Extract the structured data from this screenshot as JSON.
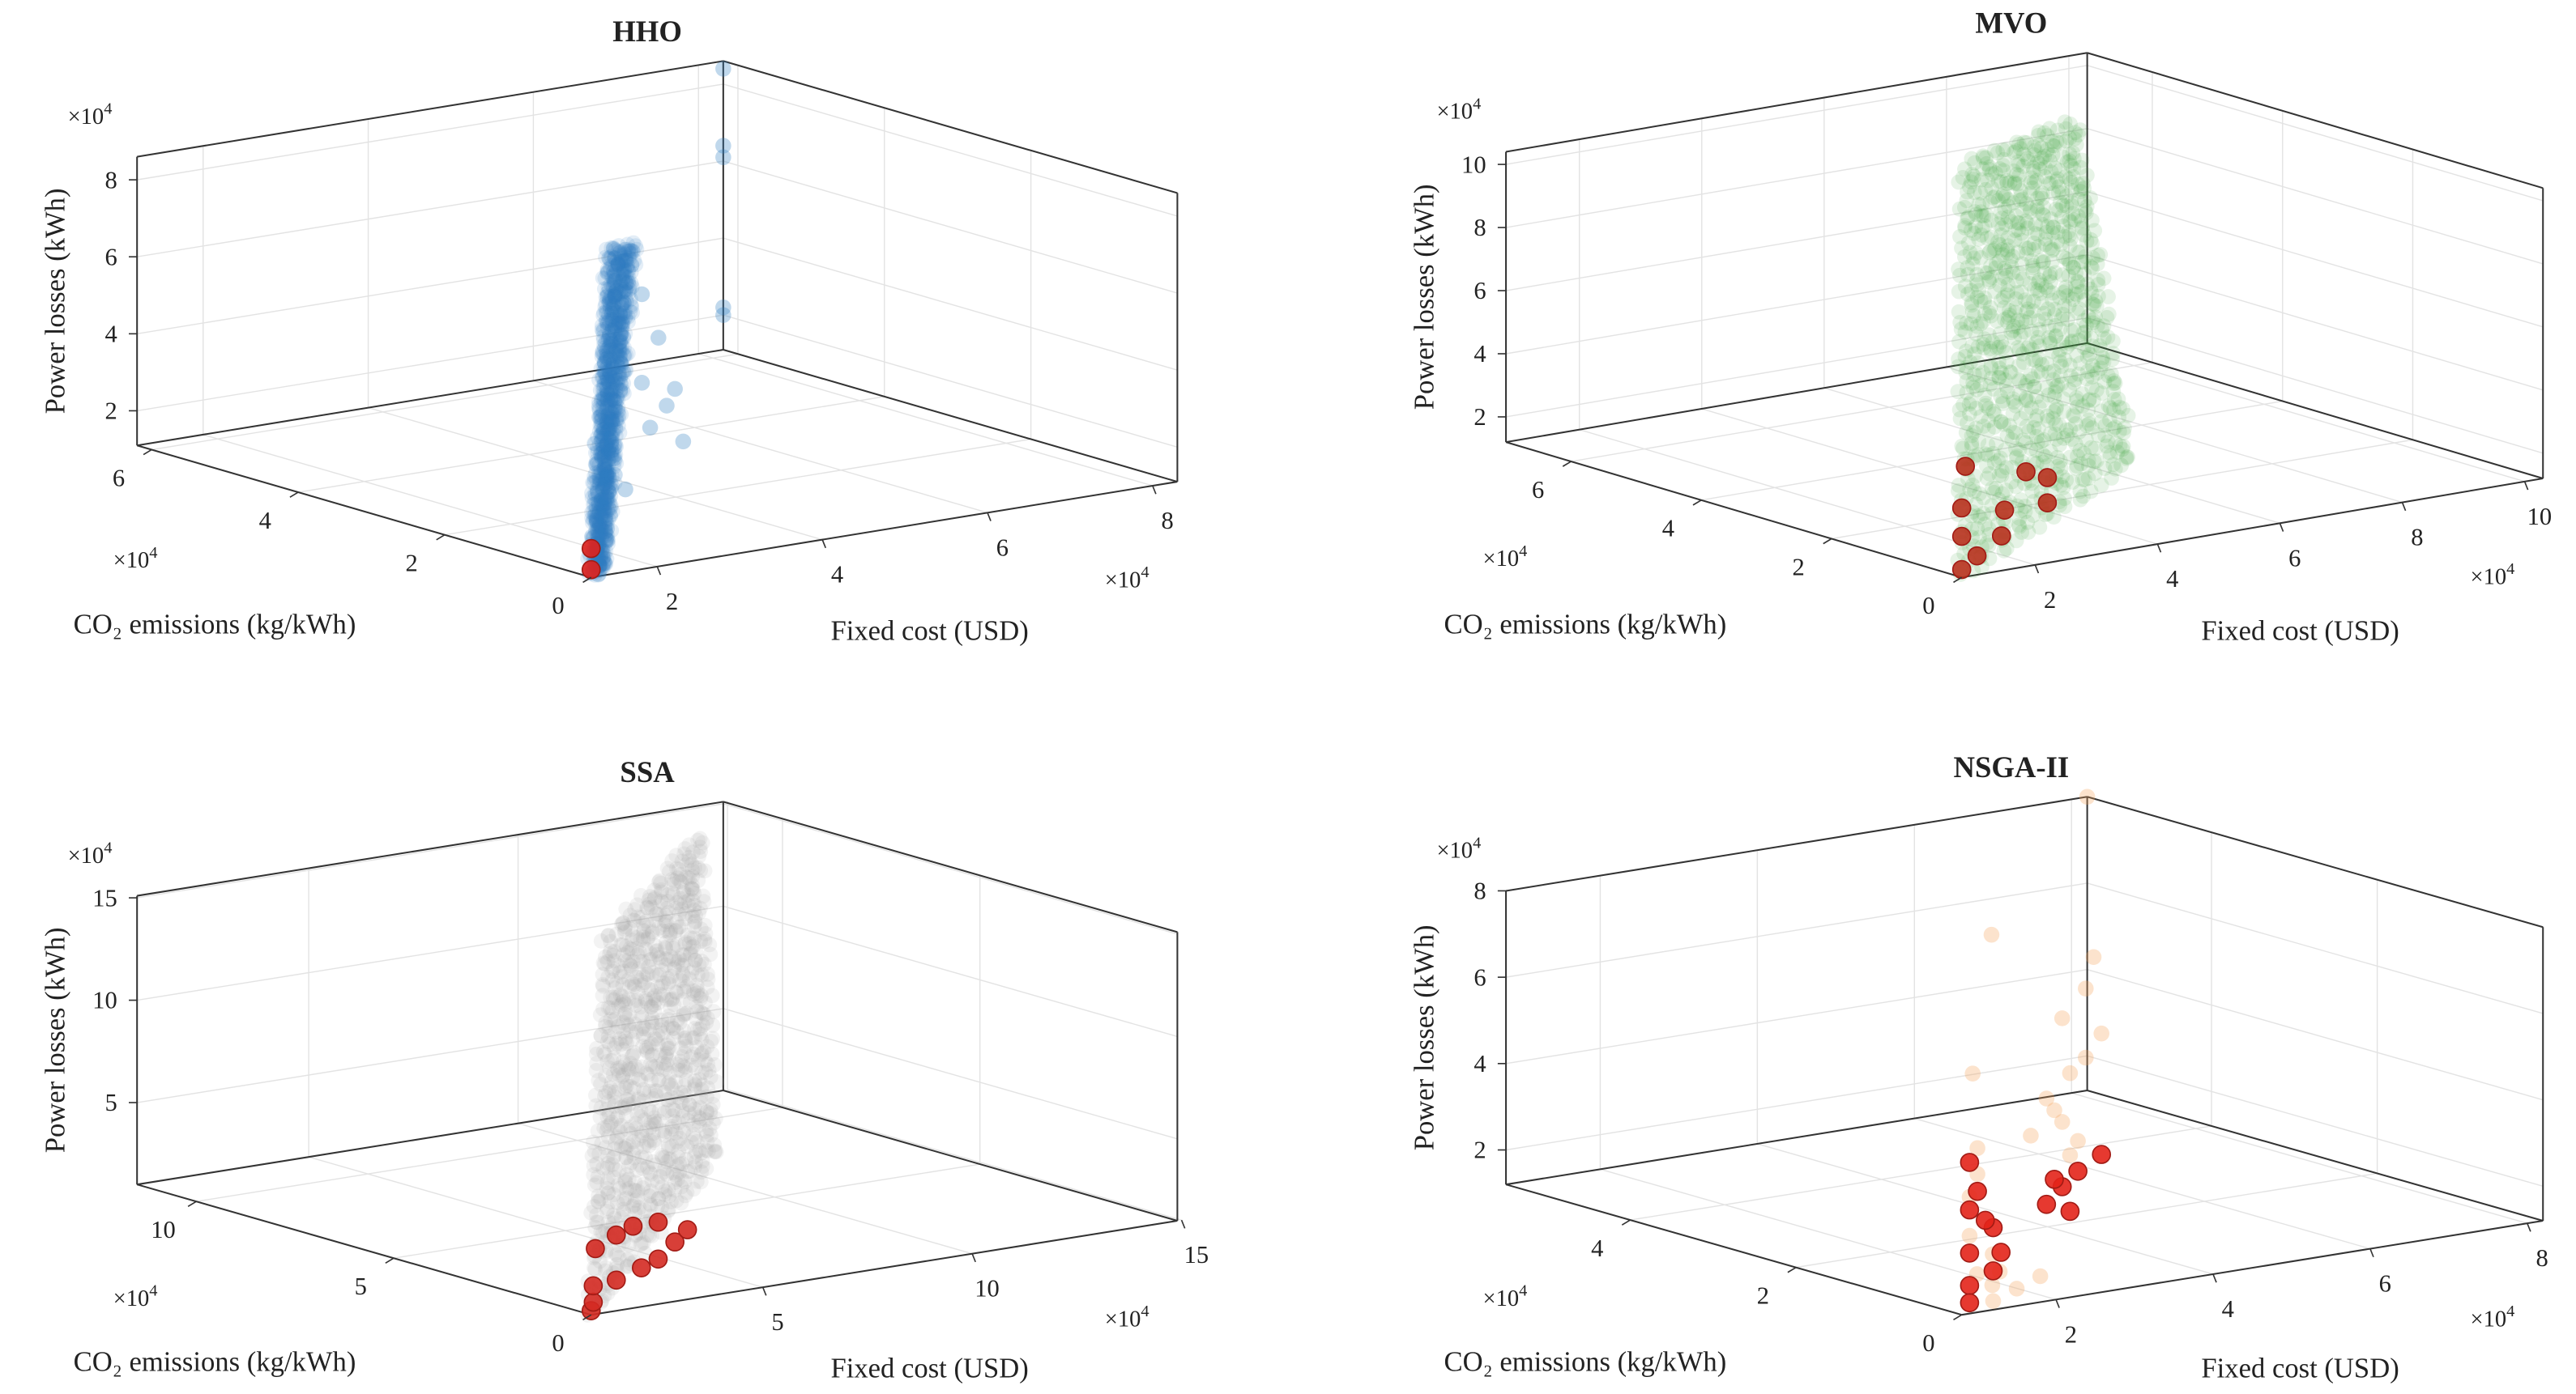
{
  "chart_data": [
    {
      "type": "scatter",
      "title": "HHO",
      "xlabel": "Fixed cost (USD)",
      "ylabel": "CO₂ emissions  (kg/kWh)",
      "zlabel": "Power losses (kWh)",
      "exponent_base": "×10",
      "exponent_power": "4",
      "xlim": [
        1.2,
        8.3
      ],
      "ylim": [
        0,
        6.2
      ],
      "zlim": [
        1.1,
        8.6
      ],
      "xticks": [
        2,
        4,
        6,
        8
      ],
      "yticks": [
        0,
        2,
        4,
        6
      ],
      "zticks": [
        2,
        4,
        6,
        8
      ],
      "grid": true,
      "population": {
        "color": "#2f7dbf",
        "region_corners": [
          [
            1.2,
            0,
            1.2
          ],
          [
            1.35,
            0,
            1.3
          ],
          [
            3.4,
            1.9,
            7.9
          ],
          [
            3.1,
            1.9,
            7.8
          ]
        ],
        "points": [
          [
            3.5,
            1.9,
            6.6
          ],
          [
            3.5,
            1.9,
            4.3
          ],
          [
            3.6,
            1.9,
            3.1
          ],
          [
            3.3,
            1.9,
            1.6
          ],
          [
            3.8,
            1.9,
            3.6
          ],
          [
            4.0,
            1.9,
            2.6
          ],
          [
            3.9,
            1.9,
            4.0
          ],
          [
            3.7,
            1.9,
            5.4
          ],
          [
            8.3,
            6.2,
            8.4
          ],
          [
            8.3,
            6.2,
            6.4
          ],
          [
            8.3,
            6.2,
            6.1
          ],
          [
            8.3,
            6.2,
            2.2
          ],
          [
            8.3,
            6.2,
            2.0
          ]
        ]
      },
      "pareto": {
        "color": "#e0201b",
        "points": [
          [
            1.2,
            0,
            1.85
          ],
          [
            1.2,
            0,
            1.3
          ]
        ]
      }
    },
    {
      "type": "scatter",
      "title": "MVO",
      "xlabel": "Fixed cost (USD)",
      "ylabel": "CO₂ emissions  (kg/kWh)",
      "zlabel": "Power losses (kWh)",
      "exponent_base": "×10",
      "exponent_power": "4",
      "xlim": [
        0.8,
        10.3
      ],
      "ylim": [
        0,
        7
      ],
      "zlim": [
        1.2,
        10.4
      ],
      "xticks": [
        2,
        4,
        6,
        8,
        10
      ],
      "yticks": [
        0,
        2,
        4,
        6
      ],
      "zticks": [
        2,
        4,
        6,
        8,
        10
      ],
      "grid": true,
      "population": {
        "color": "#3da23d",
        "region_corners": [
          [
            0.8,
            0,
            1.3
          ],
          [
            5.8,
            2.1,
            1.9
          ],
          [
            8.6,
            5.6,
            9.6
          ],
          [
            5.3,
            4.2,
            10.2
          ]
        ],
        "points": []
      },
      "pareto": {
        "color": "#b8321e",
        "points": [
          [
            0.86,
            0,
            4.7
          ],
          [
            1.85,
            0,
            4.2
          ],
          [
            2.2,
            0,
            3.9
          ],
          [
            0.8,
            0,
            3.4
          ],
          [
            1.5,
            0,
            3.1
          ],
          [
            2.2,
            0,
            3.1
          ],
          [
            0.8,
            0,
            2.5
          ],
          [
            1.45,
            0,
            2.3
          ],
          [
            1.05,
            0,
            1.8
          ],
          [
            0.8,
            0,
            1.45
          ]
        ]
      }
    },
    {
      "type": "scatter",
      "title": "SSA",
      "xlabel": "Fixed cost (USD)",
      "ylabel": "CO₂ emissions  (kg/kWh)",
      "zlabel": "Power losses (kWh)",
      "exponent_base": "×10",
      "exponent_power": "4",
      "xlim": [
        0.9,
        14.9
      ],
      "ylim": [
        0,
        11.5
      ],
      "zlim": [
        1,
        15.1
      ],
      "xticks": [
        5,
        10,
        15
      ],
      "yticks": [
        0,
        5,
        10
      ],
      "zticks": [
        5,
        10,
        15
      ],
      "grid": true,
      "population": {
        "color": "#a0a0a0",
        "region_corners": [
          [
            0.9,
            0,
            1
          ],
          [
            10.4,
            6.9,
            1.8
          ],
          [
            13.2,
            10.3,
            14.7
          ],
          [
            6.6,
            5.7,
            14.1
          ]
        ],
        "points": []
      },
      "pareto": {
        "color": "#d42a22",
        "points": [
          [
            0.9,
            0,
            1.2
          ],
          [
            0.95,
            0,
            1.6
          ],
          [
            0.95,
            0,
            2.4
          ],
          [
            1.0,
            0,
            4.2
          ],
          [
            1.5,
            0,
            4.7
          ],
          [
            1.9,
            0,
            5.0
          ],
          [
            2.5,
            0,
            5.0
          ],
          [
            1.5,
            0,
            2.5
          ],
          [
            2.1,
            0,
            2.9
          ],
          [
            2.5,
            0,
            3.2
          ],
          [
            2.9,
            0,
            3.9
          ],
          [
            3.2,
            0,
            4.4
          ]
        ]
      }
    },
    {
      "type": "scatter",
      "title": "NSGA-II",
      "xlabel": "Fixed cost (USD)",
      "ylabel": "CO₂ emissions  (kg/kWh)",
      "zlabel": "Power losses (kWh)",
      "exponent_base": "×10",
      "exponent_power": "4",
      "xlim": [
        0.8,
        8.2
      ],
      "ylim": [
        0,
        5.5
      ],
      "zlim": [
        1.2,
        8
      ],
      "xticks": [
        2,
        4,
        6,
        8
      ],
      "yticks": [
        0,
        2,
        4
      ],
      "zticks": [
        2,
        4,
        6,
        8
      ],
      "grid": true,
      "population": {
        "color": "#f5a25a",
        "region_corners": [],
        "points": [
          [
            0.9,
            0,
            3.9
          ],
          [
            1.0,
            0,
            4.4
          ],
          [
            1.1,
            0.1,
            2.0
          ],
          [
            1.4,
            0.2,
            1.6
          ],
          [
            1.6,
            0.3,
            1.8
          ],
          [
            1.2,
            0,
            1.4
          ],
          [
            1.5,
            0,
            1.6
          ],
          [
            1.8,
            0,
            1.8
          ],
          [
            4.4,
            2.2,
            3.4
          ],
          [
            4.5,
            2.2,
            4.5
          ],
          [
            4.4,
            2.2,
            5.8
          ],
          [
            4.7,
            2.2,
            6.4
          ],
          [
            4.8,
            2.2,
            7.1
          ],
          [
            8.2,
            5.5,
            8.0
          ],
          [
            3.5,
            2.2,
            8.0
          ],
          [
            2.1,
            1.1,
            5.8
          ],
          [
            4.2,
            2.2,
            4.0
          ],
          [
            4.9,
            2.2,
            5.3
          ],
          [
            4.0,
            2.2,
            3.2
          ],
          [
            4.6,
            2.2,
            2.9
          ],
          [
            4.3,
            2.2,
            3.7
          ],
          [
            4.7,
            2.2,
            4.8
          ],
          [
            4.5,
            2.2,
            2.6
          ],
          [
            1.0,
            0,
            5.0
          ],
          [
            0.9,
            0,
            3.0
          ],
          [
            1.3,
            0.1,
            2.4
          ]
        ]
      },
      "pareto": {
        "color": "#e3241a",
        "points": [
          [
            0.9,
            0,
            4.7
          ],
          [
            0.9,
            0,
            3.6
          ],
          [
            0.9,
            0,
            2.6
          ],
          [
            0.9,
            0,
            1.85
          ],
          [
            0.9,
            0,
            1.45
          ],
          [
            1.2,
            0,
            3.1
          ],
          [
            1.3,
            0,
            2.5
          ],
          [
            1.2,
            0,
            2.1
          ],
          [
            4.2,
            2.2,
            1.55
          ],
          [
            4.4,
            2.2,
            1.9
          ],
          [
            4.3,
            2.2,
            2.1
          ],
          [
            4.6,
            2.2,
            2.2
          ],
          [
            4.9,
            2.2,
            2.5
          ],
          [
            4.5,
            2.2,
            1.3
          ],
          [
            1.0,
            0,
            4.0
          ],
          [
            1.1,
            0,
            3.3
          ]
        ]
      }
    }
  ]
}
